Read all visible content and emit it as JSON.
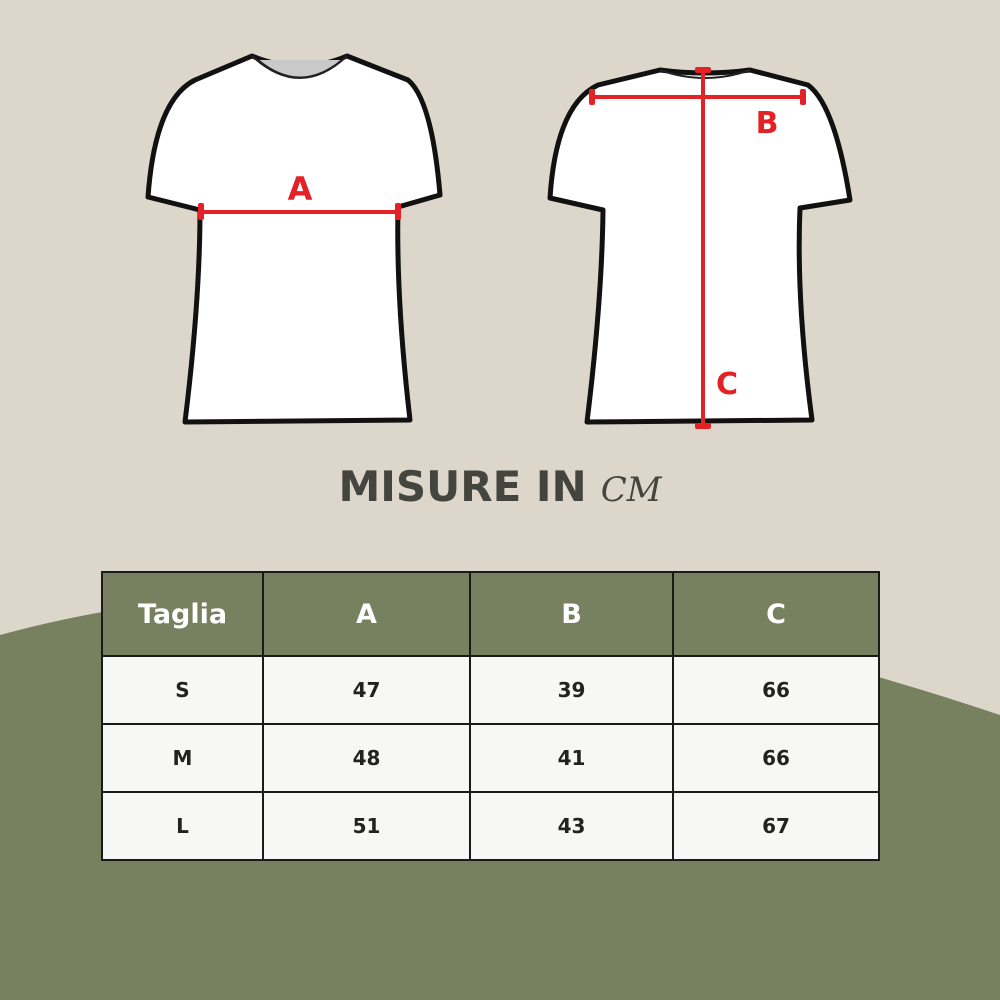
{
  "colors": {
    "background": "#dcd6cb",
    "accent_green": "#77805f",
    "measure_red": "#e42226"
  },
  "diagram": {
    "front_label": "A",
    "back_labels": [
      "B",
      "C"
    ]
  },
  "title": {
    "text": "MISURE IN",
    "unit": "CM"
  },
  "table": {
    "headers": [
      "Taglia",
      "A",
      "B",
      "C"
    ],
    "rows": [
      [
        "S",
        "47",
        "39",
        "66"
      ],
      [
        "M",
        "48",
        "41",
        "66"
      ],
      [
        "L",
        "51",
        "43",
        "67"
      ]
    ]
  }
}
